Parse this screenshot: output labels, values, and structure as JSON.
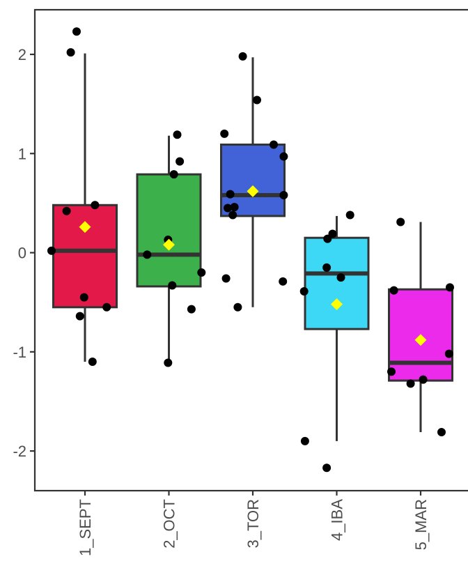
{
  "chart_data": {
    "type": "boxplot",
    "title": "",
    "xlabel": "",
    "ylabel": "",
    "ylim": [
      -2.4,
      2.45
    ],
    "yticks": [
      -2,
      -1,
      0,
      1,
      2
    ],
    "ytick_labels": [
      "-2",
      "-1",
      "0",
      "1",
      "2"
    ],
    "grid": false,
    "legend": "none",
    "categories": [
      "1_SEPT",
      "2_OCT",
      "3_TOR",
      "4_IBA",
      "5_MAR"
    ],
    "colors": [
      "#E3194A",
      "#3CB04A",
      "#4263D8",
      "#3DD8F5",
      "#EB2AEB"
    ],
    "mean_marker_color": "#FFFF00",
    "boxes": [
      {
        "category": "1_SEPT",
        "q1": -0.55,
        "median": 0.02,
        "q3": 0.48,
        "whisker_low": -1.1,
        "whisker_high": 2.01,
        "mean": 0.26
      },
      {
        "category": "2_OCT",
        "q1": -0.34,
        "median": -0.02,
        "q3": 0.79,
        "whisker_low": -1.11,
        "whisker_high": 1.18,
        "mean": 0.08
      },
      {
        "category": "3_TOR",
        "q1": 0.37,
        "median": 0.58,
        "q3": 1.09,
        "whisker_low": -0.55,
        "whisker_high": 1.97,
        "mean": 0.62
      },
      {
        "category": "4_IBA",
        "q1": -0.77,
        "median": -0.21,
        "q3": 0.15,
        "whisker_low": -1.9,
        "whisker_high": 0.37,
        "mean": -0.52
      },
      {
        "category": "5_MAR",
        "q1": -1.29,
        "median": -1.11,
        "q3": -0.37,
        "whisker_low": -1.81,
        "whisker_high": 0.31,
        "mean": -0.88
      }
    ],
    "points": [
      {
        "category": "1_SEPT",
        "jitter": -0.1,
        "y": 2.23
      },
      {
        "category": "1_SEPT",
        "jitter": -0.17,
        "y": 2.02
      },
      {
        "category": "1_SEPT",
        "jitter": 0.12,
        "y": 0.48
      },
      {
        "category": "1_SEPT",
        "jitter": -0.22,
        "y": 0.42
      },
      {
        "category": "1_SEPT",
        "jitter": -0.4,
        "y": 0.02
      },
      {
        "category": "1_SEPT",
        "jitter": -0.01,
        "y": -0.45
      },
      {
        "category": "1_SEPT",
        "jitter": 0.26,
        "y": -0.55
      },
      {
        "category": "1_SEPT",
        "jitter": -0.06,
        "y": -0.64
      },
      {
        "category": "1_SEPT",
        "jitter": 0.09,
        "y": -1.1
      },
      {
        "category": "2_OCT",
        "jitter": 0.1,
        "y": 1.19
      },
      {
        "category": "2_OCT",
        "jitter": 0.13,
        "y": 0.92
      },
      {
        "category": "2_OCT",
        "jitter": 0.06,
        "y": 0.79
      },
      {
        "category": "2_OCT",
        "jitter": -0.01,
        "y": 0.13
      },
      {
        "category": "2_OCT",
        "jitter": -0.26,
        "y": -0.02
      },
      {
        "category": "2_OCT",
        "jitter": 0.39,
        "y": -0.2
      },
      {
        "category": "2_OCT",
        "jitter": 0.04,
        "y": -0.33
      },
      {
        "category": "2_OCT",
        "jitter": 0.27,
        "y": -0.57
      },
      {
        "category": "2_OCT",
        "jitter": -0.01,
        "y": -1.11
      },
      {
        "category": "3_TOR",
        "jitter": -0.12,
        "y": 1.98
      },
      {
        "category": "3_TOR",
        "jitter": 0.05,
        "y": 1.54
      },
      {
        "category": "3_TOR",
        "jitter": -0.34,
        "y": 1.2
      },
      {
        "category": "3_TOR",
        "jitter": 0.25,
        "y": 1.09
      },
      {
        "category": "3_TOR",
        "jitter": 0.37,
        "y": 0.97
      },
      {
        "category": "3_TOR",
        "jitter": -0.27,
        "y": 0.59
      },
      {
        "category": "3_TOR",
        "jitter": 0.37,
        "y": 0.58
      },
      {
        "category": "3_TOR",
        "jitter": -0.3,
        "y": 0.45
      },
      {
        "category": "3_TOR",
        "jitter": -0.22,
        "y": 0.46
      },
      {
        "category": "3_TOR",
        "jitter": -0.24,
        "y": 0.38
      },
      {
        "category": "3_TOR",
        "jitter": -0.32,
        "y": -0.26
      },
      {
        "category": "3_TOR",
        "jitter": 0.36,
        "y": -0.29
      },
      {
        "category": "3_TOR",
        "jitter": -0.18,
        "y": -0.55
      },
      {
        "category": "4_IBA",
        "jitter": 0.16,
        "y": 0.38
      },
      {
        "category": "4_IBA",
        "jitter": -0.05,
        "y": 0.19
      },
      {
        "category": "4_IBA",
        "jitter": -0.11,
        "y": 0.14
      },
      {
        "category": "4_IBA",
        "jitter": -0.12,
        "y": -0.15
      },
      {
        "category": "4_IBA",
        "jitter": 0.05,
        "y": -0.25
      },
      {
        "category": "4_IBA",
        "jitter": -0.39,
        "y": -0.39
      },
      {
        "category": "4_IBA",
        "jitter": -0.38,
        "y": -1.9
      },
      {
        "category": "4_IBA",
        "jitter": -0.12,
        "y": -2.17
      },
      {
        "category": "5_MAR",
        "jitter": -0.24,
        "y": 0.31
      },
      {
        "category": "5_MAR",
        "jitter": -0.32,
        "y": -0.38
      },
      {
        "category": "5_MAR",
        "jitter": 0.35,
        "y": -0.35
      },
      {
        "category": "5_MAR",
        "jitter": 0.34,
        "y": -1.02
      },
      {
        "category": "5_MAR",
        "jitter": -0.35,
        "y": -1.2
      },
      {
        "category": "5_MAR",
        "jitter": 0.03,
        "y": -1.28
      },
      {
        "category": "5_MAR",
        "jitter": -0.12,
        "y": -1.32
      },
      {
        "category": "5_MAR",
        "jitter": 0.25,
        "y": -1.81
      }
    ]
  }
}
